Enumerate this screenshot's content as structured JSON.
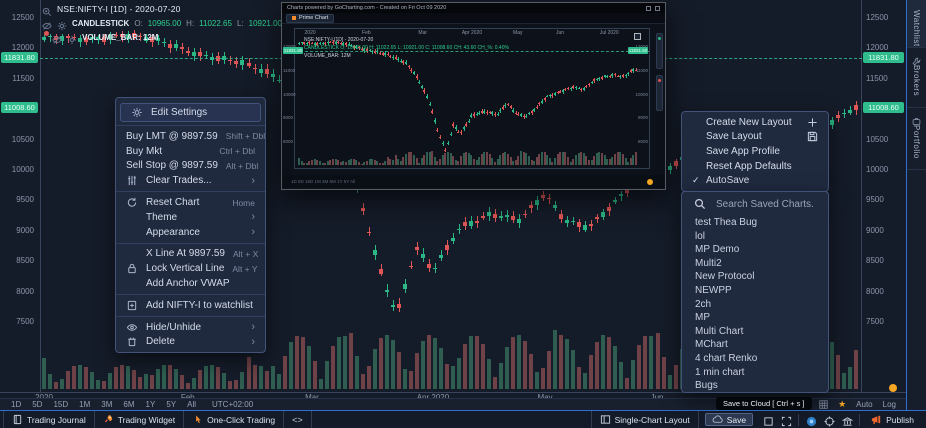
{
  "colors": {
    "bg": "#151c29",
    "accent_green": "#2fbd8e",
    "candle_up": "#2bb886",
    "candle_down": "#e05656",
    "vol_up": "#2f5e50",
    "vol_down": "#6e4247",
    "orange": "#f08c2e",
    "blue_border": "#2e6fd1"
  },
  "legend": {
    "symbol": "NSE:NIFTY-I [1D] - 2020-07-20",
    "study": "CANDLESTICK",
    "o_label": "O:",
    "o": "10965.00",
    "h_label": "H:",
    "h": "11022.65",
    "l_label": "L:",
    "l": "10921.00",
    "c_label": "C:",
    "c": "11008.6",
    "volume": "VOLUME_BAR: 12M"
  },
  "axis": {
    "y_ticks": [
      12500,
      12000,
      11500,
      10500,
      10000,
      9500,
      9000,
      8500,
      8000,
      7500
    ],
    "x_ticks": [
      {
        "label": "2020",
        "f": 0.0
      },
      {
        "label": "Feb",
        "f": 0.177
      },
      {
        "label": "Mar",
        "f": 0.33
      },
      {
        "label": "Apr 2020",
        "f": 0.479
      },
      {
        "label": "May",
        "f": 0.617
      },
      {
        "label": "Jun",
        "f": 0.755
      }
    ],
    "badge_high": "11831.80",
    "badge_last": "11008.60"
  },
  "chart_data": {
    "type": "candlestick",
    "symbol": "NSE:NIFTY-I",
    "interval": "1D",
    "high_line_price": 11831.8,
    "last_price": 11008.6,
    "price_range": [
      7500,
      12500
    ],
    "anchors": [
      [
        0,
        12150
      ],
      [
        0.05,
        12120
      ],
      [
        0.1,
        12230
      ],
      [
        0.18,
        11940
      ],
      [
        0.23,
        11790
      ],
      [
        0.28,
        11540
      ],
      [
        0.32,
        11300
      ],
      [
        0.35,
        10700
      ],
      [
        0.385,
        9700
      ],
      [
        0.41,
        8500
      ],
      [
        0.434,
        7610
      ],
      [
        0.458,
        8700
      ],
      [
        0.479,
        8300
      ],
      [
        0.513,
        9050
      ],
      [
        0.55,
        9280
      ],
      [
        0.587,
        9140
      ],
      [
        0.617,
        9580
      ],
      [
        0.642,
        9180
      ],
      [
        0.672,
        9060
      ],
      [
        0.703,
        9420
      ],
      [
        0.733,
        9850
      ],
      [
        0.755,
        9950
      ],
      [
        0.782,
        10150
      ],
      [
        0.813,
        10320
      ],
      [
        0.843,
        10180
      ],
      [
        0.874,
        10550
      ],
      [
        0.905,
        10750
      ],
      [
        0.935,
        10820
      ],
      [
        0.966,
        10700
      ],
      [
        0.984,
        10950
      ],
      [
        1,
        11010
      ]
    ]
  },
  "context_menu": {
    "items": [
      {
        "label": "Edit Settings"
      },
      {
        "label": "Buy LMT @ 9897.59",
        "shortcut": "Shift + Dbl"
      },
      {
        "label": "Buy Mkt",
        "shortcut": "Ctrl + Dbl"
      },
      {
        "label": "Sell Stop @ 9897.59",
        "shortcut": "Alt + Dbl"
      },
      {
        "label": "Clear Trades...",
        "arrow": "›"
      },
      {
        "label": "Reset Chart",
        "shortcut": "Home"
      },
      {
        "label": "Theme",
        "arrow": "›"
      },
      {
        "label": "Appearance",
        "arrow": "›"
      },
      {
        "label": "X Line At 9897.59",
        "shortcut": "Alt + X"
      },
      {
        "label": "Lock Vertical Line",
        "shortcut": "Alt + Y"
      },
      {
        "label": "Add Anchor VWAP"
      },
      {
        "label": "Add NIFTY-I to watchlist"
      },
      {
        "label": "Hide/Unhide",
        "arrow": "›"
      },
      {
        "label": "Delete",
        "arrow": "›"
      }
    ]
  },
  "layout_menu": {
    "items": [
      {
        "label": "Create New Layout"
      },
      {
        "label": "Save Layout"
      },
      {
        "label": "Save App Profile"
      },
      {
        "label": "Reset App Defaults"
      },
      {
        "label": "AutoSave",
        "check": "✓"
      }
    ]
  },
  "saved_charts": {
    "search_label": "Search Saved Charts.",
    "items": [
      "test Thea Bug",
      "lol",
      "MP Demo",
      "Multi2",
      "New Protocol",
      "NEWPP",
      "2ch",
      "MP",
      "Multi Chart",
      "MChart",
      "4 chart Renko",
      "1 min chart",
      "Bugs"
    ]
  },
  "popup": {
    "title": "Charts powered by GoCharting.com - Created on Fri Oct 09 2020",
    "tab": "Prime Chart",
    "symbol": "NSE:NIFTY-I [1D] - 2020-07-20",
    "ohlc": "CANDLESTICK O: 10965.00 H: 11022.65 L: 10921.00 C: 11008.60 CH: 43.60 CH_%: 0.40%",
    "volume": "VOLUME_BAR: 12M",
    "badge": "11831.80",
    "timeframes": "1D 5D 15D 1M 3M 6M 1Y 5Y All",
    "months": [
      {
        "label": "2020",
        "f": 0.04
      },
      {
        "label": "Feb",
        "f": 0.2
      },
      {
        "label": "Mar",
        "f": 0.36
      },
      {
        "label": "Apr 2020",
        "f": 0.5
      },
      {
        "label": "May",
        "f": 0.63
      },
      {
        "label": "Jun",
        "f": 0.75
      },
      {
        "label": "Jul 2020",
        "f": 0.89
      }
    ],
    "y_ticks": [
      12000,
      11000,
      10000,
      9000,
      8000
    ]
  },
  "share": [
    {
      "name": "facebook",
      "color": "#3b5998"
    },
    {
      "name": "twitter",
      "color": "#1da1f2"
    },
    {
      "name": "whatsapp",
      "color": "#25d366"
    },
    {
      "name": "messenger",
      "color": "#0084ff"
    },
    {
      "name": "pinterest",
      "color": "#e53935"
    },
    {
      "name": "linkedin",
      "color": "#0077b5"
    },
    {
      "name": "tumblr",
      "color": "#50637a"
    },
    {
      "name": "youtube",
      "color": "#b3262a"
    },
    {
      "name": "telegram",
      "color": "#2787d8"
    },
    {
      "name": "reddit",
      "color": "#ff8f2b"
    },
    {
      "name": "skype",
      "color": "#45c3f0"
    }
  ],
  "tf_bar": {
    "items": [
      "1D",
      "5D",
      "15D",
      "1M",
      "3M",
      "6M",
      "1Y",
      "5Y",
      "All"
    ],
    "timezone": "UTC+02:00",
    "auto": "Auto",
    "log": "Log",
    "star": "★"
  },
  "taskbar": {
    "trading_journal": "Trading Journal",
    "trading_widget": "Trading Widget",
    "one_click": "One-Click Trading",
    "code": "<>",
    "single_chart": "Single-Chart Layout",
    "save": "Save",
    "publish": "Publish"
  },
  "tooltip": "Save to Cloud [ Ctrl + s ]",
  "sidebar": {
    "tabs": [
      "Watchlist",
      "Brokers",
      "Portfolio"
    ]
  }
}
